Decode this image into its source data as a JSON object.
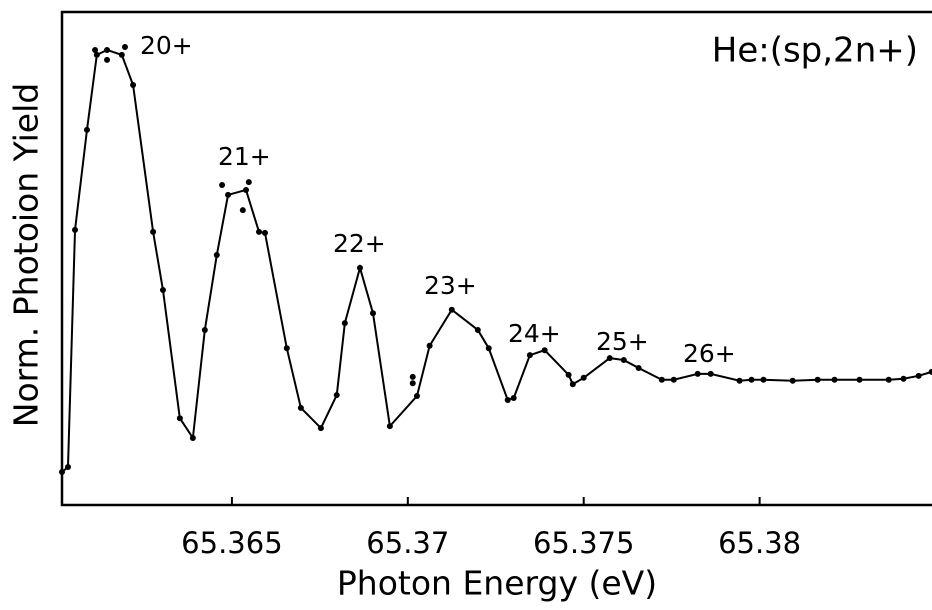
{
  "chart_data": {
    "type": "line",
    "title": "He:(sp,2n+)",
    "x_label": "Photon Energy (eV)",
    "y_label": "Norm. Photoion Yield",
    "annotations": [
      "20+",
      "21+",
      "22+",
      "23+",
      "24+",
      "25+",
      "26+"
    ],
    "xlim": [
      65.36017,
      65.3849
    ],
    "ylim": [
      0,
      1
    ],
    "xticks": [
      65.365,
      65.37,
      65.375,
      65.38
    ],
    "color": "#000000",
    "series": [
      {
        "x": [
          65.36017,
          65.36034,
          65.36054,
          65.36088,
          65.36116,
          65.36145,
          65.36187,
          65.36219,
          65.36276,
          65.36304,
          65.36352,
          65.36389,
          65.36423,
          65.36457,
          65.36489,
          65.3654,
          65.36577,
          65.36594,
          65.36656,
          65.36696,
          65.36753,
          65.36798,
          65.36821,
          65.36864,
          65.36901,
          65.36949,
          65.37026,
          65.37062,
          65.37125,
          65.37199,
          65.3723,
          65.37284,
          65.37301,
          65.37347,
          65.37389,
          65.37457,
          65.37469,
          65.375,
          65.37574,
          65.37614,
          65.37656,
          65.37722,
          65.37756,
          65.37824,
          65.37861,
          65.37943,
          65.37977,
          65.38011,
          65.38094,
          65.38165,
          65.38213,
          65.38284,
          65.38367,
          65.38409,
          65.38452,
          65.38489
        ],
        "values": [
          0.067,
          0.077,
          0.558,
          0.761,
          0.913,
          0.923,
          0.913,
          0.852,
          0.554,
          0.436,
          0.176,
          0.136,
          0.355,
          0.507,
          0.629,
          0.639,
          0.554,
          0.552,
          0.318,
          0.197,
          0.156,
          0.223,
          0.369,
          0.481,
          0.389,
          0.16,
          0.221,
          0.323,
          0.396,
          0.355,
          0.318,
          0.213,
          0.217,
          0.304,
          0.314,
          0.264,
          0.245,
          0.258,
          0.298,
          0.294,
          0.278,
          0.254,
          0.254,
          0.266,
          0.266,
          0.252,
          0.254,
          0.254,
          0.252,
          0.254,
          0.254,
          0.254,
          0.254,
          0.256,
          0.262,
          0.27
        ]
      },
      {
        "x": [
          65.36111,
          65.36145,
          65.36196,
          65.36472,
          65.36531,
          65.36548,
          65.37014,
          65.37014
        ],
        "values": [
          0.923,
          0.903,
          0.929,
          0.649,
          0.598,
          0.655,
          0.26,
          0.247
        ]
      }
    ]
  }
}
